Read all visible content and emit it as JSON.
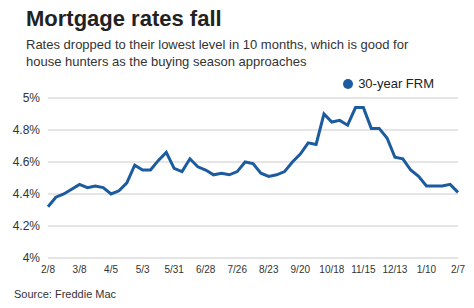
{
  "chart_data": {
    "type": "line",
    "title": "Mortgage rates fall",
    "subtitle": "Rates dropped to their lowest level in 10 months, which is good for house hunters as the buying season approaches",
    "source": "Source: Freddie Mac",
    "categories": [
      "2/8",
      null,
      null,
      null,
      "3/8",
      null,
      null,
      null,
      "4/5",
      null,
      null,
      null,
      "5/3",
      null,
      null,
      null,
      "5/31",
      null,
      null,
      null,
      "6/28",
      null,
      null,
      null,
      "7/26",
      null,
      null,
      null,
      "8/23",
      null,
      null,
      null,
      "9/20",
      null,
      null,
      null,
      "10/18",
      null,
      null,
      null,
      "11/15",
      null,
      null,
      null,
      "12/13",
      null,
      null,
      null,
      "1/10",
      null,
      null,
      null,
      "2/7"
    ],
    "series": [
      {
        "name": "30-year FRM",
        "color": "#1c5c9e",
        "values": [
          4.32,
          4.38,
          4.4,
          4.43,
          4.46,
          4.44,
          4.45,
          4.44,
          4.4,
          4.42,
          4.47,
          4.58,
          4.55,
          4.55,
          4.61,
          4.66,
          4.56,
          4.54,
          4.62,
          4.57,
          4.55,
          4.52,
          4.53,
          4.52,
          4.54,
          4.6,
          4.59,
          4.53,
          4.51,
          4.52,
          4.54,
          4.6,
          4.65,
          4.72,
          4.71,
          4.9,
          4.85,
          4.86,
          4.83,
          4.94,
          4.94,
          4.81,
          4.81,
          4.75,
          4.63,
          4.62,
          4.55,
          4.51,
          4.45,
          4.45,
          4.45,
          4.46,
          4.41
        ]
      }
    ],
    "ylim": [
      4,
      5
    ],
    "yticks": [
      {
        "value": 4,
        "label": "4%"
      },
      {
        "value": 4.2,
        "label": "4.2%"
      },
      {
        "value": 4.4,
        "label": "4.4%"
      },
      {
        "value": 4.6,
        "label": "4.6%"
      },
      {
        "value": 4.8,
        "label": "4.8%"
      },
      {
        "value": 5,
        "label": "5%"
      }
    ],
    "grid": true,
    "legend": "upper right"
  }
}
